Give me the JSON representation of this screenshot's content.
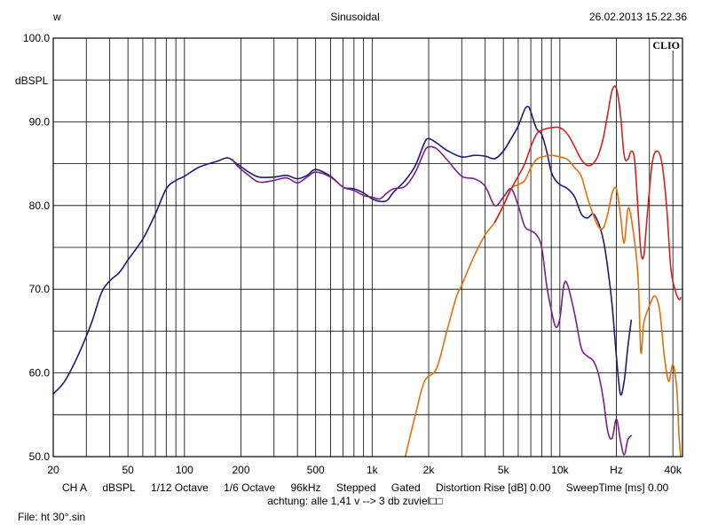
{
  "header": {
    "left": "w",
    "center": "Sinusoidal",
    "right": "26.02.2013 15.22.36"
  },
  "brand": "CLIO",
  "chart_data": {
    "type": "line",
    "title": "Sinusoidal",
    "ylabel": "dBSPL",
    "xscale": "log",
    "xlim": [
      20,
      45000
    ],
    "ylim": [
      50,
      100
    ],
    "grid": true,
    "y_ticks": [
      50,
      60,
      70,
      80,
      90,
      100
    ],
    "y_tick_labels": [
      "50.0",
      "60.0",
      "70.0",
      "80.0",
      "90.0",
      "100.0"
    ],
    "x_ticks": [
      20,
      50,
      100,
      200,
      500,
      1000,
      2000,
      5000,
      10000,
      20000,
      40000
    ],
    "x_tick_labels": [
      "20",
      "50",
      "100",
      "200",
      "500",
      "1k",
      "2k",
      "5k",
      "10k",
      "Hz",
      "40k"
    ],
    "series": [
      {
        "color": "#1c1c78",
        "points": [
          [
            20,
            57.5
          ],
          [
            23,
            59
          ],
          [
            27,
            62
          ],
          [
            32,
            66
          ],
          [
            36,
            69.5
          ],
          [
            40,
            71
          ],
          [
            45,
            72
          ],
          [
            50,
            73.5
          ],
          [
            60,
            76
          ],
          [
            70,
            79
          ],
          [
            80,
            82
          ],
          [
            90,
            83
          ],
          [
            100,
            83.5
          ],
          [
            120,
            84.6
          ],
          [
            150,
            85.3
          ],
          [
            170,
            85.7
          ],
          [
            190,
            85
          ],
          [
            220,
            84
          ],
          [
            250,
            83.4
          ],
          [
            300,
            83.4
          ],
          [
            350,
            83.6
          ],
          [
            400,
            83.2
          ],
          [
            450,
            83.6
          ],
          [
            500,
            84.3
          ],
          [
            600,
            83.5
          ],
          [
            700,
            82.2
          ],
          [
            800,
            82
          ],
          [
            900,
            81.5
          ],
          [
            1000,
            80.8
          ],
          [
            1100,
            80.5
          ],
          [
            1200,
            80.6
          ],
          [
            1300,
            81.6
          ],
          [
            1500,
            83
          ],
          [
            1700,
            84.8
          ],
          [
            1900,
            87.5
          ],
          [
            2000,
            88
          ],
          [
            2200,
            87.5
          ],
          [
            2500,
            86.6
          ],
          [
            3000,
            85.8
          ],
          [
            3500,
            86
          ],
          [
            4000,
            85.9
          ],
          [
            4500,
            85.6
          ],
          [
            5000,
            86.5
          ],
          [
            5500,
            88
          ],
          [
            6000,
            89.5
          ],
          [
            6500,
            91.5
          ],
          [
            6800,
            91.8
          ],
          [
            7000,
            91.2
          ],
          [
            7500,
            89.2
          ],
          [
            8000,
            88.5
          ],
          [
            8500,
            86.5
          ],
          [
            9000,
            84
          ],
          [
            9500,
            83
          ],
          [
            10000,
            82.5
          ],
          [
            11000,
            82
          ],
          [
            12000,
            81
          ],
          [
            13000,
            79
          ],
          [
            14000,
            78.5
          ],
          [
            15000,
            79
          ],
          [
            16000,
            78
          ],
          [
            17000,
            76
          ],
          [
            18000,
            72.5
          ],
          [
            19000,
            68
          ],
          [
            20000,
            62
          ],
          [
            21000,
            57.5
          ],
          [
            22000,
            59
          ],
          [
            23000,
            63
          ],
          [
            24000,
            66.3
          ]
        ]
      },
      {
        "color": "#7a1f8c",
        "points": [
          [
            180,
            85.5
          ],
          [
            190,
            84.8
          ],
          [
            220,
            83.6
          ],
          [
            250,
            82.8
          ],
          [
            300,
            83
          ],
          [
            350,
            83.3
          ],
          [
            400,
            82.7
          ],
          [
            450,
            83.4
          ],
          [
            500,
            84
          ],
          [
            600,
            83.4
          ],
          [
            700,
            82.2
          ],
          [
            800,
            81.8
          ],
          [
            900,
            81.2
          ],
          [
            1000,
            81
          ],
          [
            1100,
            80.8
          ],
          [
            1200,
            81.5
          ],
          [
            1300,
            82
          ],
          [
            1500,
            82.3
          ],
          [
            1700,
            84
          ],
          [
            1900,
            86.5
          ],
          [
            2000,
            87
          ],
          [
            2200,
            86.8
          ],
          [
            2500,
            85.5
          ],
          [
            3000,
            83.5
          ],
          [
            3500,
            83.2
          ],
          [
            4000,
            82.3
          ],
          [
            4500,
            80
          ],
          [
            5000,
            81
          ],
          [
            5500,
            82
          ],
          [
            6000,
            80
          ],
          [
            6500,
            77.5
          ],
          [
            7000,
            77
          ],
          [
            7500,
            76.5
          ],
          [
            8000,
            75
          ],
          [
            8500,
            70.5
          ],
          [
            9000,
            67.5
          ],
          [
            9500,
            65.5
          ],
          [
            10000,
            66.5
          ],
          [
            10500,
            70.5
          ],
          [
            11000,
            70.5
          ],
          [
            12000,
            67
          ],
          [
            13000,
            63
          ],
          [
            14000,
            62
          ],
          [
            15000,
            61.5
          ],
          [
            16000,
            60
          ],
          [
            17000,
            57
          ],
          [
            18000,
            53
          ],
          [
            19000,
            52.2
          ],
          [
            20000,
            54.5
          ],
          [
            21000,
            52
          ],
          [
            22000,
            50.2
          ],
          [
            23000,
            52
          ],
          [
            24000,
            52.5
          ]
        ]
      },
      {
        "color": "#e36f0a",
        "points": [
          [
            1500,
            50
          ],
          [
            1700,
            55
          ],
          [
            1900,
            59
          ],
          [
            2200,
            60.5
          ],
          [
            2500,
            65
          ],
          [
            2800,
            69
          ],
          [
            3000,
            70.5
          ],
          [
            3500,
            74
          ],
          [
            4000,
            76.5
          ],
          [
            4500,
            78
          ],
          [
            5000,
            80
          ],
          [
            5500,
            82
          ],
          [
            6000,
            82.5
          ],
          [
            6500,
            83
          ],
          [
            7000,
            84.5
          ],
          [
            7500,
            85.5
          ],
          [
            8000,
            85.8
          ],
          [
            9000,
            86
          ],
          [
            10000,
            85.8
          ],
          [
            11000,
            85.5
          ],
          [
            12000,
            84.5
          ],
          [
            13000,
            83.5
          ],
          [
            14000,
            81
          ],
          [
            15000,
            79
          ],
          [
            16000,
            77.5
          ],
          [
            17000,
            77.3
          ],
          [
            18000,
            79
          ],
          [
            19000,
            81.5
          ],
          [
            20000,
            82
          ],
          [
            21000,
            79
          ],
          [
            22000,
            75.5
          ],
          [
            23000,
            79.5
          ],
          [
            24000,
            78.5
          ],
          [
            26000,
            72
          ],
          [
            27000,
            62.5
          ],
          [
            28000,
            66
          ],
          [
            30000,
            68
          ],
          [
            32000,
            69.2
          ],
          [
            34000,
            67.5
          ],
          [
            36000,
            62
          ],
          [
            38000,
            59
          ],
          [
            40000,
            61
          ],
          [
            42000,
            58
          ],
          [
            43000,
            53
          ],
          [
            44000,
            50
          ]
        ]
      },
      {
        "color": "#d42020",
        "points": [
          [
            4500,
            78
          ],
          [
            5000,
            80
          ],
          [
            5500,
            82
          ],
          [
            6000,
            83.5
          ],
          [
            6500,
            85
          ],
          [
            7000,
            87
          ],
          [
            7500,
            88.5
          ],
          [
            8000,
            89
          ],
          [
            9000,
            89.3
          ],
          [
            10000,
            89.3
          ],
          [
            11000,
            88.5
          ],
          [
            12000,
            87
          ],
          [
            13000,
            85.5
          ],
          [
            14000,
            84.8
          ],
          [
            15000,
            85
          ],
          [
            16000,
            86
          ],
          [
            17000,
            88
          ],
          [
            18000,
            91
          ],
          [
            19000,
            93.8
          ],
          [
            20000,
            94
          ],
          [
            21000,
            91
          ],
          [
            22000,
            86
          ],
          [
            23000,
            85.5
          ],
          [
            24000,
            86.5
          ],
          [
            25000,
            85.5
          ],
          [
            26000,
            80
          ],
          [
            27000,
            74.5
          ],
          [
            28000,
            74
          ],
          [
            29000,
            78
          ],
          [
            31000,
            85
          ],
          [
            33000,
            86.5
          ],
          [
            35000,
            85
          ],
          [
            37000,
            80
          ],
          [
            39000,
            72.5
          ],
          [
            41000,
            70
          ],
          [
            43000,
            68.8
          ],
          [
            44000,
            69
          ]
        ]
      }
    ]
  },
  "footer": {
    "items": [
      "CH A",
      "dBSPL",
      "1/12 Octave",
      "1/6 Octave",
      "96kHz",
      "Stepped",
      "Gated",
      "Distortion Rise [dB] 0.00",
      "SweepTime [ms] 0.00"
    ],
    "note": "achtung: alle 1,41 v --> 3 db zuviel□□",
    "file": "File: ht 30°.sin"
  }
}
